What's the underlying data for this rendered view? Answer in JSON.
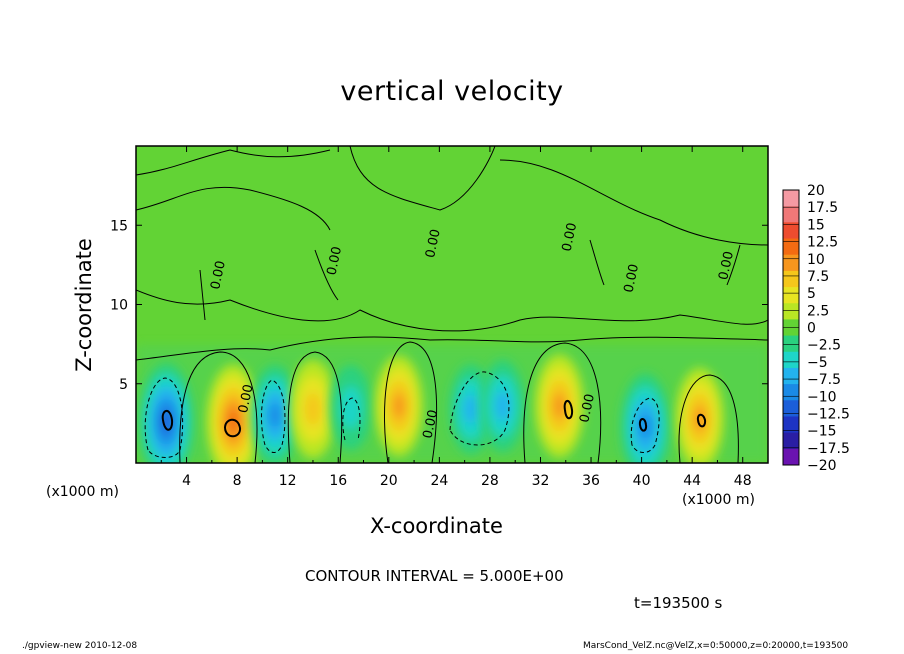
{
  "chart_data": {
    "type": "contour",
    "title": "vertical velocity",
    "xlabel": "X-coordinate",
    "ylabel": "Z-coordinate",
    "x_unit_label_left": "(x1000 m)",
    "x_unit_label_right": "(x1000 m)",
    "xlim": [
      0,
      50
    ],
    "ylim": [
      0,
      20
    ],
    "x_ticks": [
      "4",
      "8",
      "12",
      "16",
      "20",
      "24",
      "28",
      "32",
      "36",
      "40",
      "44",
      "48"
    ],
    "y_ticks": [
      "5",
      "10",
      "15"
    ],
    "contour_label": "0.00",
    "cells": [
      {
        "x": 2.4,
        "z": 2.6,
        "value": -12.5
      },
      {
        "x": 7.7,
        "z": 2.6,
        "value": 12.0
      },
      {
        "x": 11.0,
        "z": 3.0,
        "value": -9.0
      },
      {
        "x": 14.0,
        "z": 3.4,
        "value": 8.5
      },
      {
        "x": 17.0,
        "z": 3.5,
        "value": -5.5
      },
      {
        "x": 20.8,
        "z": 3.6,
        "value": 9.0
      },
      {
        "x": 26.5,
        "z": 3.4,
        "value": -6.5
      },
      {
        "x": 29.0,
        "z": 3.6,
        "value": -7.0
      },
      {
        "x": 33.5,
        "z": 3.6,
        "value": 9.5
      },
      {
        "x": 40.3,
        "z": 2.3,
        "value": -10.0
      },
      {
        "x": 44.6,
        "z": 2.8,
        "value": 9.0
      }
    ],
    "colorbar": {
      "labels": [
        "20",
        "17.5",
        "15",
        "12.5",
        "10",
        "7.5",
        "5",
        "2.5",
        "0",
        "−2.5",
        "−5",
        "−7.5",
        "−10",
        "−12.5",
        "−15",
        "−17.5",
        "−20"
      ],
      "colors": [
        "#f49aa3",
        "#f07878",
        "#ed4c2f",
        "#f36b12",
        "#f7961e",
        "#f5c71b",
        "#e7e422",
        "#b9e624",
        "#62d335",
        "#2ad17f",
        "#1ed5c8",
        "#23b3ee",
        "#1a8ae6",
        "#1b5ed9",
        "#1d34c4",
        "#2a1ea4",
        "#6a13b0"
      ]
    },
    "contour_interval_text": "CONTOUR INTERVAL = 5.000E+00",
    "time_text": "t=193500 s"
  },
  "footer": {
    "left": "./gpview-new   2010-12-08",
    "right": "MarsCond_VelZ.nc@VelZ,x=0:50000,z=0:20000,t=193500"
  },
  "colors": {
    "background_field": "#62d335",
    "lower_field": "#4fd25a"
  }
}
